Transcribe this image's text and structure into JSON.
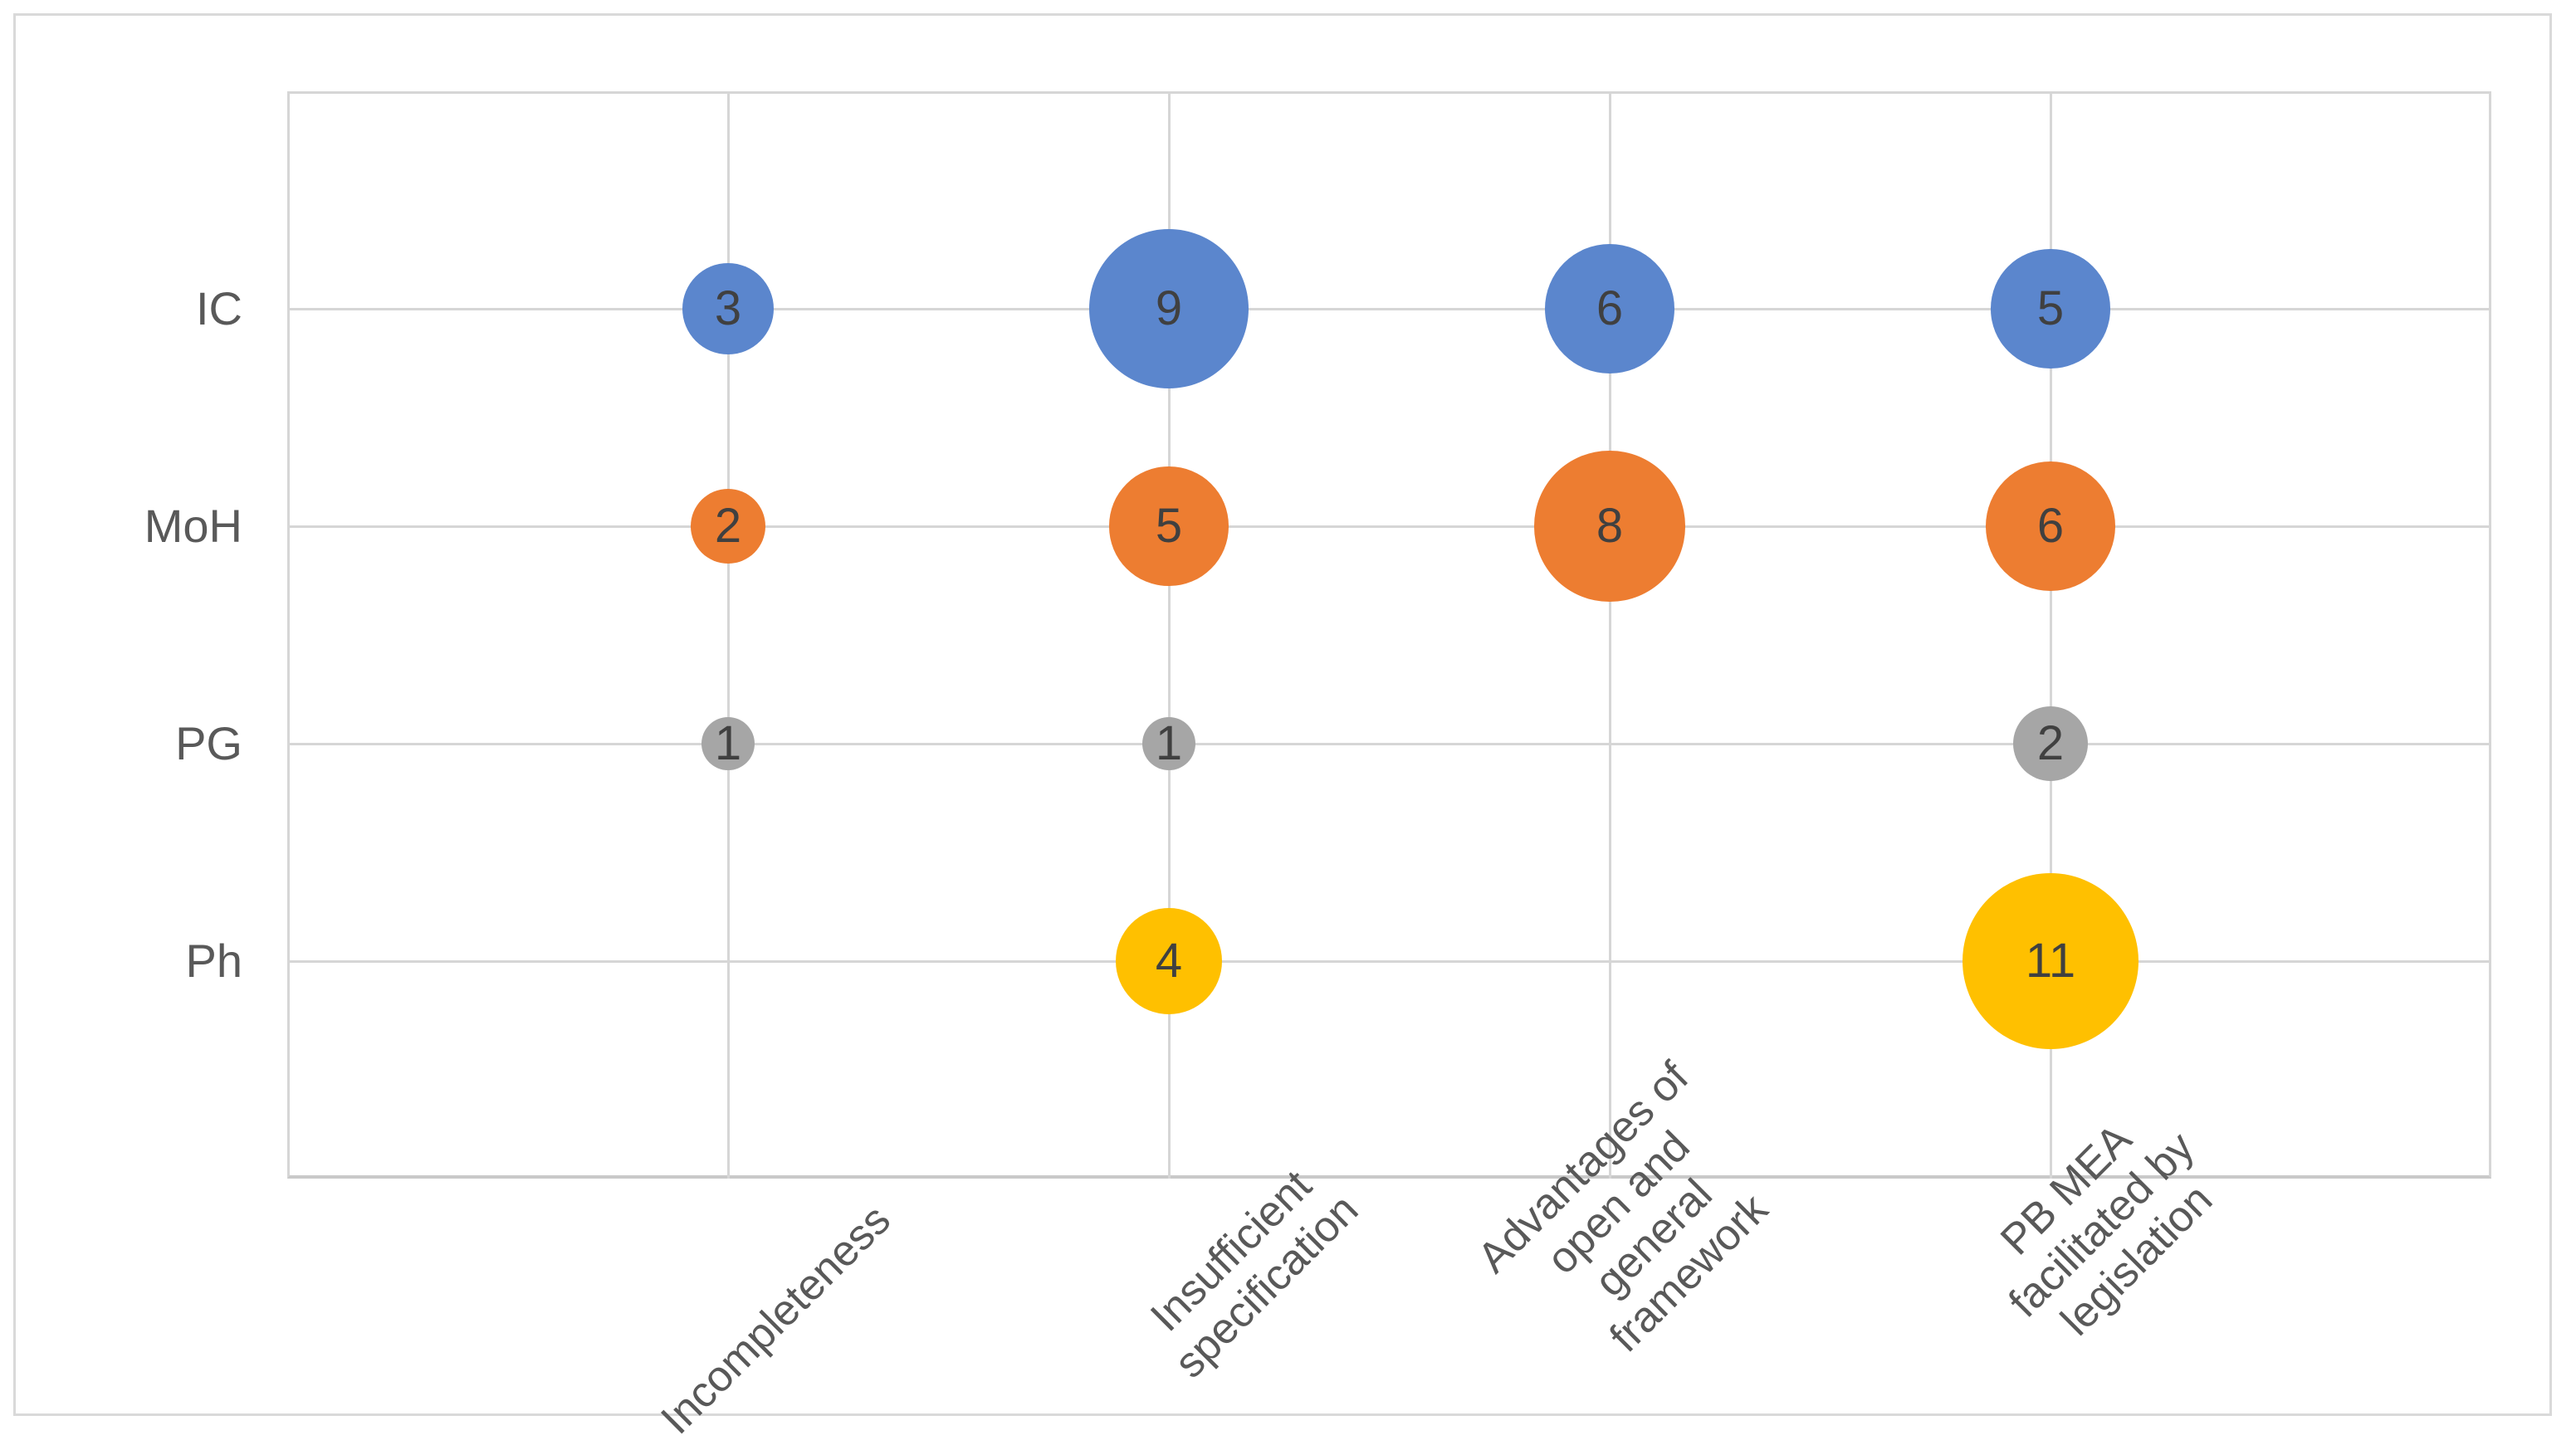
{
  "chart_data": {
    "type": "scatter",
    "subtype": "bubble",
    "title": "",
    "xlabel": "",
    "ylabel": "",
    "grid": true,
    "legend_position": "none",
    "size_encoding": "bubble area proportional to value",
    "x_categories": [
      {
        "label": "Incompleteness",
        "lines": [
          "Incompleteness"
        ]
      },
      {
        "label": "Insufficient specification",
        "lines": [
          "Insufficient",
          "specification"
        ]
      },
      {
        "label": "Advantages of open and general framework",
        "lines": [
          "Advantages of",
          "open and",
          "general",
          "framework"
        ]
      },
      {
        "label": "PB MEA facilitated by legislation",
        "lines": [
          "PB MEA",
          "facilitated by",
          "legislation"
        ]
      }
    ],
    "y_categories": [
      "IC",
      "MoH",
      "PG",
      "Ph"
    ],
    "series": [
      {
        "name": "IC",
        "color": "#5B86CD",
        "values": [
          3,
          9,
          6,
          5
        ]
      },
      {
        "name": "MoH",
        "color": "#ED7D31",
        "values": [
          2,
          5,
          8,
          6
        ]
      },
      {
        "name": "PG",
        "color": "#A6A6A6",
        "values": [
          1,
          1,
          null,
          2
        ]
      },
      {
        "name": "Ph",
        "color": "#FFC000",
        "values": [
          null,
          4,
          null,
          11
        ]
      }
    ]
  },
  "colors": {
    "series_ic": "#5B86CD",
    "series_moh": "#ED7D31",
    "series_pg": "#A6A6A6",
    "series_ph": "#FFC000",
    "gridline": "#d6d6d6",
    "axis_line": "#c9c9c9",
    "outer_border": "#d9d9d9",
    "axis_text": "#595959",
    "data_label_text": "#404040"
  }
}
